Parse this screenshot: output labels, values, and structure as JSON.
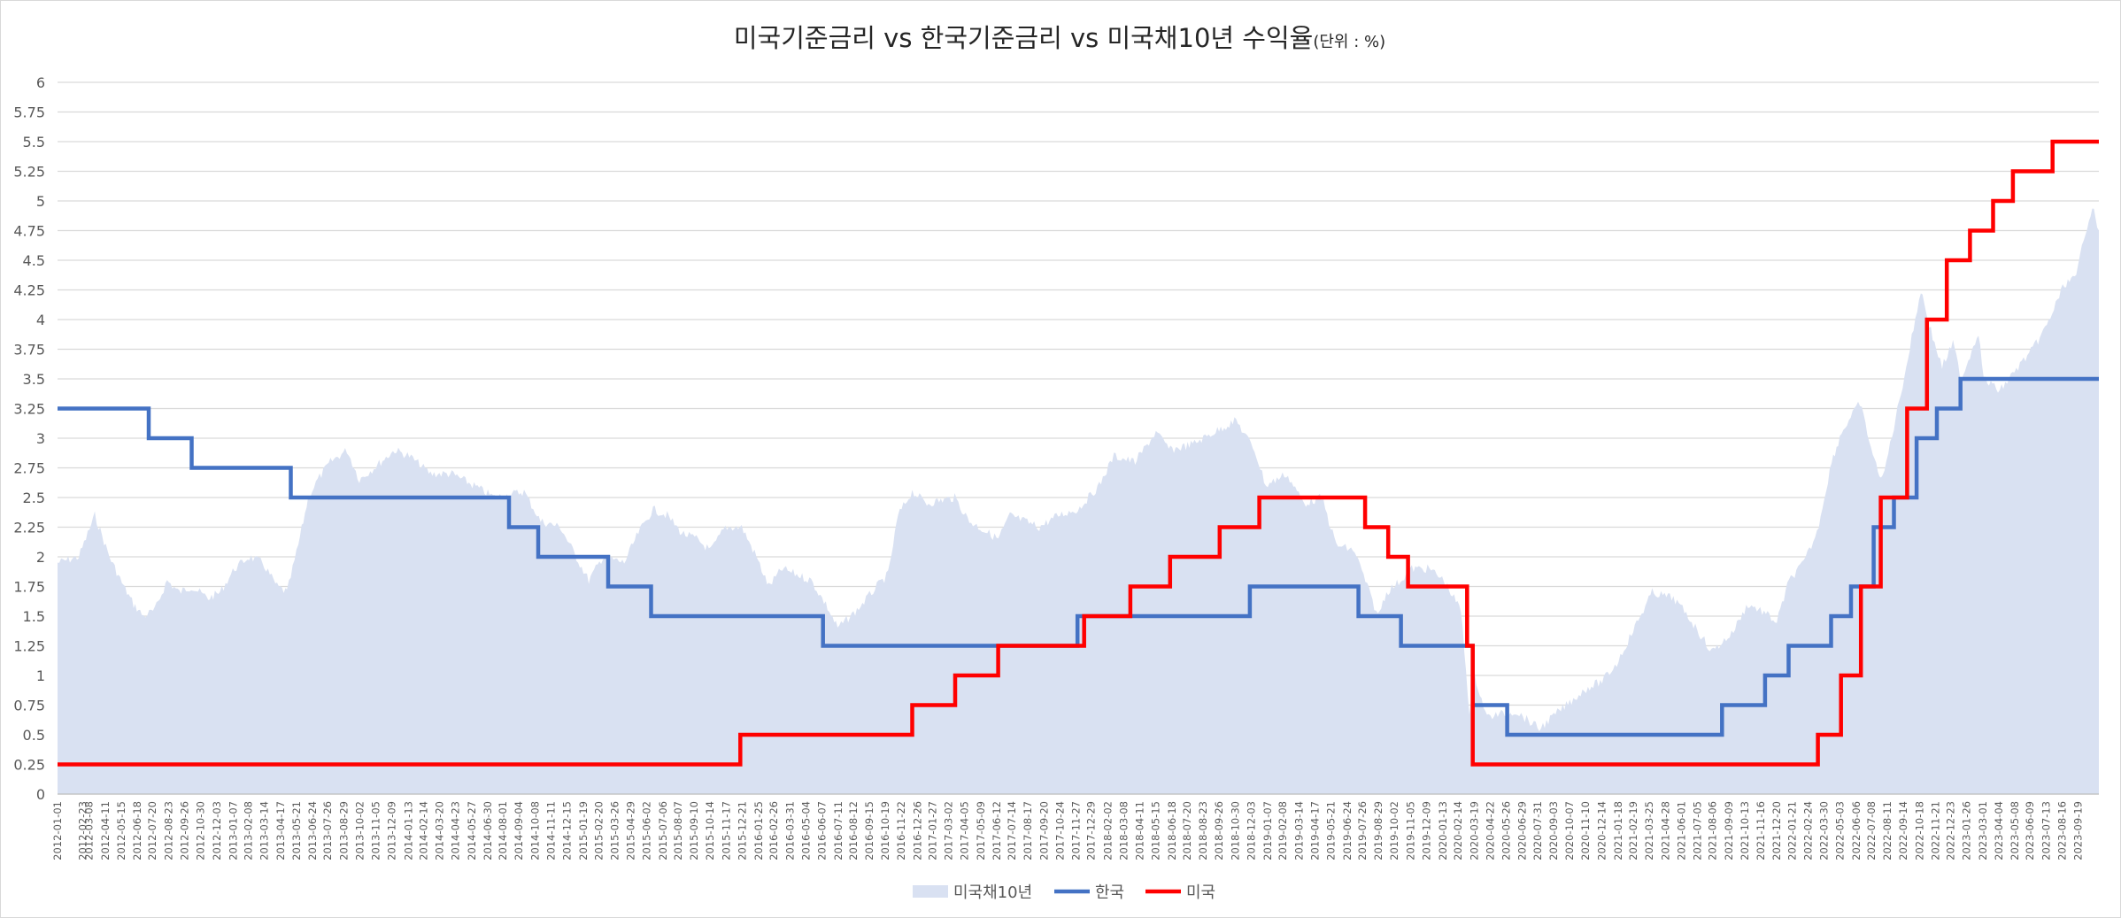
{
  "chart_data": {
    "type": "line",
    "title": "미국기준금리 vs 한국기준금리 vs 미국채10년 수익율",
    "title_unit": "(단위 : %)",
    "xlabel": "",
    "ylabel": "",
    "ylim": [
      0,
      6
    ],
    "y_ticks": [
      "0",
      "0.25",
      "0.5",
      "0.75",
      "1",
      "1.25",
      "1.5",
      "1.75",
      "2",
      "2.25",
      "2.5",
      "2.75",
      "3",
      "3.25",
      "3.5",
      "3.75",
      "4",
      "4.25",
      "4.5",
      "4.75",
      "5",
      "5.25",
      "5.5",
      "5.75",
      "6"
    ],
    "xlim": [
      "2012-01-01",
      "2023-11-02"
    ],
    "x_ticks": [
      "2012-01-01",
      "2012-02-23",
      "2012-03-08",
      "2012-04-11",
      "2012-05-15",
      "2012-06-18",
      "2012-07-20",
      "2012-08-23",
      "2012-09-26",
      "2012-10-30",
      "2012-12-03",
      "2013-01-07",
      "2013-02-08",
      "2013-03-14",
      "2013-04-17",
      "2013-05-21",
      "2013-06-24",
      "2013-07-26",
      "2013-08-29",
      "2013-10-02",
      "2013-11-05",
      "2013-12-09",
      "2014-01-13",
      "2014-02-14",
      "2014-03-20",
      "2014-04-23",
      "2014-05-27",
      "2014-06-30",
      "2014-08-01",
      "2014-09-04",
      "2014-10-08",
      "2014-11-11",
      "2014-12-15",
      "2015-01-19",
      "2015-02-20",
      "2015-03-26",
      "2015-04-29",
      "2015-06-02",
      "2015-07-06",
      "2015-08-07",
      "2015-09-10",
      "2015-10-14",
      "2015-11-17",
      "2015-12-21",
      "2016-01-25",
      "2016-02-26",
      "2016-03-31",
      "2016-05-04",
      "2016-06-07",
      "2016-07-11",
      "2016-08-12",
      "2016-09-15",
      "2016-10-19",
      "2016-11-22",
      "2016-12-26",
      "2017-01-27",
      "2017-03-02",
      "2017-04-05",
      "2017-05-09",
      "2017-06-12",
      "2017-07-14",
      "2017-08-17",
      "2017-09-20",
      "2017-10-24",
      "2017-11-27",
      "2017-12-29",
      "2018-02-02",
      "2018-03-08",
      "2018-04-11",
      "2018-05-15",
      "2018-06-18",
      "2018-07-20",
      "2018-08-23",
      "2018-09-26",
      "2018-10-30",
      "2018-12-03",
      "2019-01-07",
      "2019-02-08",
      "2019-03-14",
      "2019-04-17",
      "2019-05-21",
      "2019-06-24",
      "2019-07-26",
      "2019-08-29",
      "2019-10-02",
      "2019-11-05",
      "2019-12-09",
      "2020-01-13",
      "2020-02-14",
      "2020-03-19",
      "2020-04-22",
      "2020-05-26",
      "2020-06-29",
      "2020-07-31",
      "2020-09-03",
      "2020-10-07",
      "2020-11-10",
      "2020-12-14",
      "2021-01-18",
      "2021-02-19",
      "2021-03-25",
      "2021-04-28",
      "2021-06-01",
      "2021-07-05",
      "2021-08-06",
      "2021-09-09",
      "2021-10-13",
      "2021-11-16",
      "2021-12-20",
      "2022-01-21",
      "2022-02-24",
      "2022-03-30",
      "2022-05-03",
      "2022-06-06",
      "2022-07-08",
      "2022-08-11",
      "2022-09-14",
      "2022-10-18",
      "2022-11-21",
      "2022-12-23",
      "2023-01-26",
      "2023-03-01",
      "2023-04-04",
      "2023-05-08",
      "2023-06-09",
      "2023-07-13",
      "2023-08-16",
      "2023-09-19"
    ],
    "legend_position": "bottom",
    "grid": true,
    "series": [
      {
        "name": "미국채10년",
        "kind": "area",
        "color": "#d9e1f2",
        "x": [
          "2012-01-01",
          "2012-02-15",
          "2012-03-20",
          "2012-04-20",
          "2012-05-20",
          "2012-06-10",
          "2012-07-01",
          "2012-07-25",
          "2012-08-20",
          "2012-09-15",
          "2012-10-10",
          "2012-11-15",
          "2012-12-10",
          "2013-01-10",
          "2013-02-10",
          "2013-03-10",
          "2013-04-10",
          "2013-05-01",
          "2013-05-25",
          "2013-06-15",
          "2013-07-05",
          "2013-08-01",
          "2013-09-05",
          "2013-10-01",
          "2013-11-01",
          "2013-12-15",
          "2014-01-15",
          "2014-03-01",
          "2014-04-15",
          "2014-06-01",
          "2014-07-15",
          "2014-09-15",
          "2014-10-20",
          "2014-12-01",
          "2015-01-30",
          "2015-03-01",
          "2015-04-15",
          "2015-05-15",
          "2015-06-15",
          "2015-07-15",
          "2015-08-15",
          "2015-09-15",
          "2015-10-15",
          "2015-11-15",
          "2015-12-20",
          "2016-01-20",
          "2016-02-15",
          "2016-03-15",
          "2016-05-15",
          "2016-06-15",
          "2016-07-10",
          "2016-08-20",
          "2016-10-01",
          "2016-10-25",
          "2016-11-15",
          "2016-12-15",
          "2017-01-15",
          "2017-03-15",
          "2017-04-15",
          "2017-06-15",
          "2017-07-10",
          "2017-09-10",
          "2017-10-20",
          "2017-12-01",
          "2018-01-15",
          "2018-02-15",
          "2018-04-01",
          "2018-05-15",
          "2018-06-15",
          "2018-08-01",
          "2018-09-15",
          "2018-11-01",
          "2018-12-10",
          "2019-01-03",
          "2019-02-15",
          "2019-03-25",
          "2019-05-01",
          "2019-06-01",
          "2019-07-10",
          "2019-08-28",
          "2019-09-15",
          "2019-10-15",
          "2019-11-08",
          "2019-12-15",
          "2020-01-15",
          "2020-02-20",
          "2020-03-09",
          "2020-03-20",
          "2020-04-15",
          "2020-06-15",
          "2020-08-04",
          "2020-09-15",
          "2020-10-15",
          "2020-11-15",
          "2020-12-15",
          "2021-01-15",
          "2021-02-15",
          "2021-03-31",
          "2021-05-15",
          "2021-06-15",
          "2021-08-04",
          "2021-09-15",
          "2021-10-20",
          "2021-11-15",
          "2021-12-20",
          "2022-01-15",
          "2022-02-15",
          "2022-03-15",
          "2022-04-15",
          "2022-05-06",
          "2022-06-14",
          "2022-07-15",
          "2022-08-01",
          "2022-08-25",
          "2022-09-20",
          "2022-10-21",
          "2022-11-15",
          "2022-12-05",
          "2022-12-28",
          "2023-01-15",
          "2023-02-20",
          "2023-03-03",
          "2023-04-06",
          "2023-05-15",
          "2023-06-15",
          "2023-07-15",
          "2023-08-21",
          "2023-09-15",
          "2023-10-01",
          "2023-10-19",
          "2023-11-02"
        ],
        "values": [
          1.95,
          2.0,
          2.35,
          2.0,
          1.75,
          1.6,
          1.5,
          1.55,
          1.8,
          1.7,
          1.75,
          1.65,
          1.7,
          1.9,
          2.0,
          1.95,
          1.75,
          1.7,
          2.1,
          2.5,
          2.65,
          2.8,
          2.9,
          2.65,
          2.75,
          2.9,
          2.85,
          2.7,
          2.7,
          2.6,
          2.5,
          2.55,
          2.3,
          2.25,
          1.8,
          2.0,
          1.95,
          2.2,
          2.4,
          2.35,
          2.2,
          2.15,
          2.05,
          2.25,
          2.25,
          2.0,
          1.75,
          1.9,
          1.8,
          1.6,
          1.4,
          1.55,
          1.75,
          1.85,
          2.35,
          2.55,
          2.45,
          2.5,
          2.3,
          2.15,
          2.35,
          2.25,
          2.35,
          2.4,
          2.6,
          2.85,
          2.8,
          3.05,
          2.9,
          2.95,
          3.05,
          3.15,
          2.9,
          2.6,
          2.7,
          2.45,
          2.5,
          2.1,
          2.05,
          1.5,
          1.7,
          1.8,
          1.9,
          1.9,
          1.8,
          1.55,
          0.7,
          1.0,
          0.65,
          0.7,
          0.55,
          0.7,
          0.8,
          0.9,
          0.95,
          1.1,
          1.35,
          1.7,
          1.65,
          1.5,
          1.2,
          1.35,
          1.6,
          1.55,
          1.45,
          1.8,
          1.95,
          2.2,
          2.8,
          3.05,
          3.3,
          2.8,
          2.65,
          3.1,
          3.6,
          4.25,
          3.85,
          3.6,
          3.8,
          3.5,
          3.9,
          3.5,
          3.4,
          3.6,
          3.75,
          3.95,
          4.3,
          4.35,
          4.7,
          4.95,
          4.75
        ]
      },
      {
        "name": "한국",
        "kind": "step",
        "color": "#4472c4",
        "x": [
          "2012-01-01",
          "2012-07-12",
          "2012-10-11",
          "2013-05-09",
          "2014-08-14",
          "2014-10-15",
          "2015-03-12",
          "2015-06-11",
          "2016-06-09",
          "2017-11-30",
          "2018-11-30",
          "2019-07-18",
          "2019-10-16",
          "2020-03-16",
          "2020-05-28",
          "2021-08-26",
          "2021-11-25",
          "2022-01-14",
          "2022-04-14",
          "2022-05-26",
          "2022-07-13",
          "2022-08-25",
          "2022-10-12",
          "2022-11-24",
          "2023-01-13",
          "2023-11-02"
        ],
        "values": [
          3.25,
          3.0,
          2.75,
          2.5,
          2.25,
          2.0,
          1.75,
          1.5,
          1.25,
          1.5,
          1.75,
          1.5,
          1.25,
          0.75,
          0.5,
          0.75,
          1.0,
          1.25,
          1.5,
          1.75,
          2.25,
          2.5,
          3.0,
          3.25,
          3.5,
          3.5
        ]
      },
      {
        "name": "미국",
        "kind": "step",
        "color": "#ff0000",
        "x": [
          "2012-01-01",
          "2015-12-17",
          "2016-12-15",
          "2017-03-16",
          "2017-06-15",
          "2017-12-14",
          "2018-03-22",
          "2018-06-14",
          "2018-09-27",
          "2018-12-20",
          "2019-08-01",
          "2019-09-19",
          "2019-10-31",
          "2020-03-04",
          "2020-03-16",
          "2022-03-17",
          "2022-05-05",
          "2022-06-16",
          "2022-07-28",
          "2022-09-22",
          "2022-11-03",
          "2022-12-15",
          "2023-02-02",
          "2023-03-23",
          "2023-05-04",
          "2023-07-27",
          "2023-11-02"
        ],
        "values": [
          0.25,
          0.5,
          0.75,
          1.0,
          1.25,
          1.5,
          1.75,
          2.0,
          2.25,
          2.5,
          2.25,
          2.0,
          1.75,
          1.25,
          0.25,
          0.5,
          1.0,
          1.75,
          2.5,
          3.25,
          4.0,
          4.5,
          4.75,
          5.0,
          5.25,
          5.5,
          5.5
        ]
      }
    ]
  }
}
